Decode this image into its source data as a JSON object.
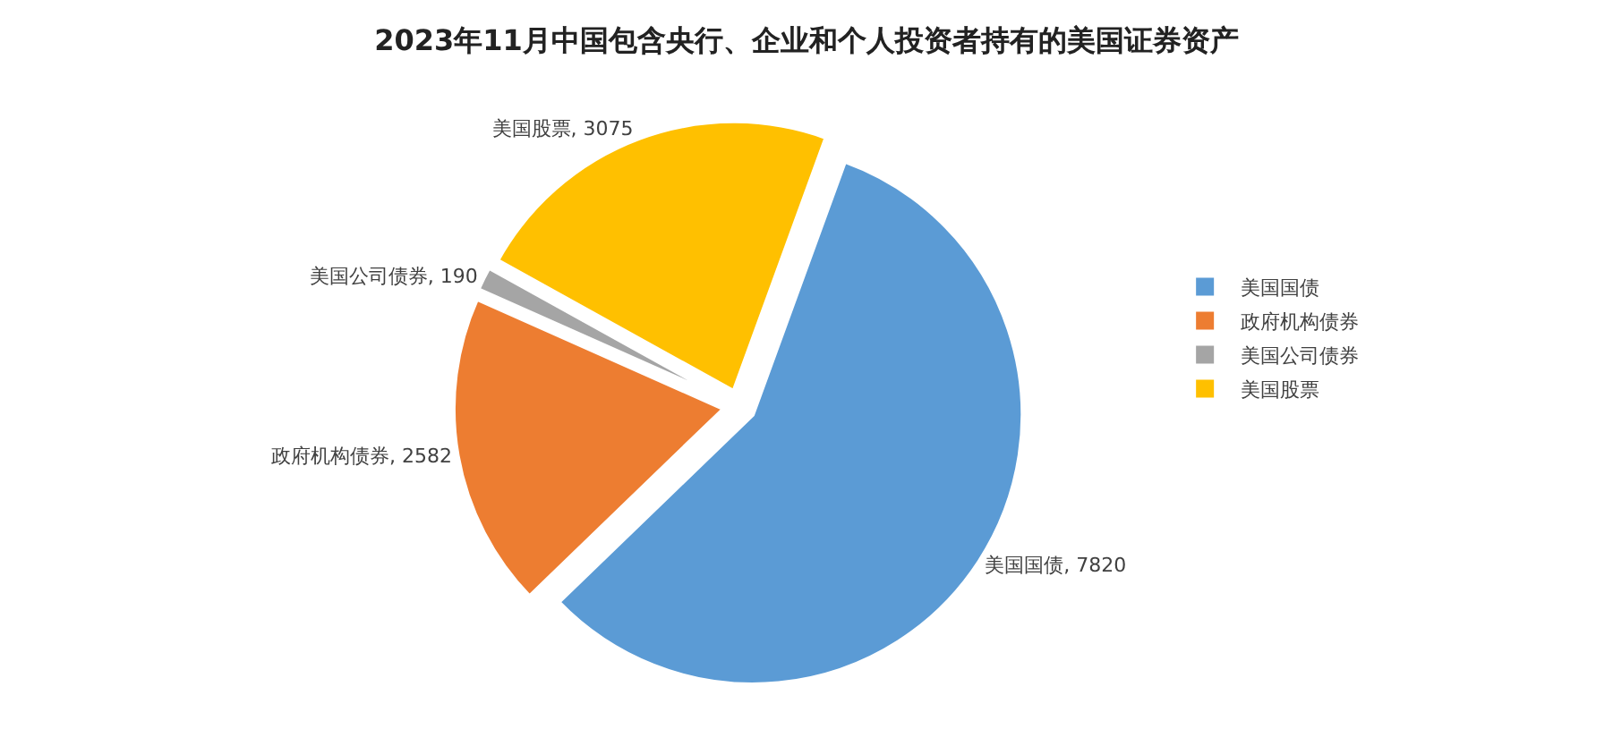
{
  "chart_data": {
    "type": "pie",
    "title": "2023年11月中国包含央行、企业和个人投资者持有的美国证券资产",
    "categories": [
      "美国国债",
      "政府机构债券",
      "美国公司债券",
      "美国股票"
    ],
    "values": [
      7820,
      2582,
      190,
      3075
    ],
    "colors": [
      "#5b9bd5",
      "#ed7d31",
      "#a5a5a5",
      "#ffc000"
    ],
    "value_labels": [
      "美国国债, 7820",
      "政府机构债券, 2582",
      "美国公司债券, 190",
      "美国股票, 3075"
    ],
    "legend": "right"
  }
}
